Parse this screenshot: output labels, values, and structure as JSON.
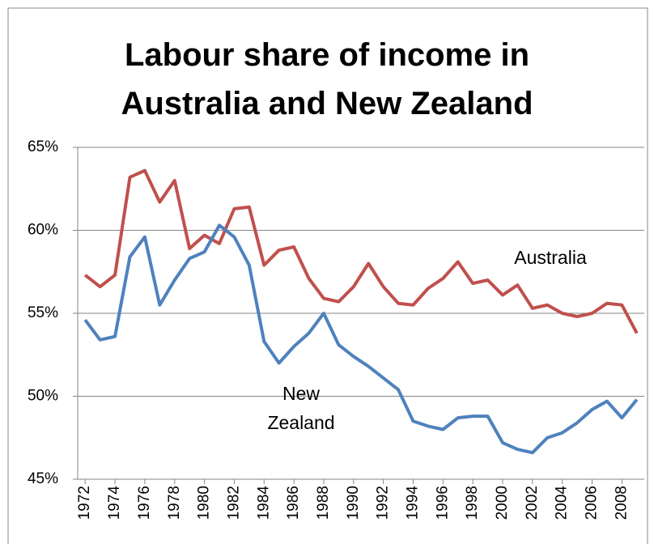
{
  "chart_data": {
    "type": "line",
    "title": "Labour share of income in Australia and New Zealand",
    "x": [
      1972,
      1973,
      1974,
      1975,
      1976,
      1977,
      1978,
      1979,
      1980,
      1981,
      1982,
      1983,
      1984,
      1985,
      1986,
      1987,
      1988,
      1989,
      1990,
      1991,
      1992,
      1993,
      1994,
      1995,
      1996,
      1997,
      1998,
      1999,
      2000,
      2001,
      2002,
      2003,
      2004,
      2005,
      2006,
      2007,
      2008,
      2009
    ],
    "xlim": [
      1971.5,
      2009.5
    ],
    "xticks": [
      1972,
      1974,
      1976,
      1978,
      1980,
      1982,
      1984,
      1986,
      1988,
      1990,
      1992,
      1994,
      1996,
      1998,
      2000,
      2002,
      2004,
      2006,
      2008
    ],
    "ylim": [
      45,
      65
    ],
    "yticks": [
      {
        "value": 45,
        "label": "45%"
      },
      {
        "value": 50,
        "label": "50%"
      },
      {
        "value": 55,
        "label": "55%"
      },
      {
        "value": 60,
        "label": "60%"
      },
      {
        "value": 65,
        "label": "65%"
      }
    ],
    "grid": true,
    "series": [
      {
        "name": "Australia",
        "color": "#c0504d",
        "values": [
          57.3,
          56.6,
          57.3,
          63.2,
          63.6,
          61.7,
          63.0,
          58.9,
          59.7,
          59.2,
          61.3,
          61.4,
          57.9,
          58.8,
          59.0,
          57.1,
          55.9,
          55.7,
          56.6,
          58.0,
          56.6,
          55.6,
          55.5,
          56.5,
          57.1,
          58.1,
          56.8,
          57.0,
          56.1,
          56.7,
          55.3,
          55.5,
          55.0,
          54.8,
          55.0,
          55.6,
          55.5,
          53.8
        ]
      },
      {
        "name": "New Zealand",
        "color": "#4f81bd",
        "values": [
          54.6,
          53.4,
          53.6,
          58.4,
          59.6,
          55.5,
          57.0,
          58.3,
          58.7,
          60.3,
          59.6,
          57.9,
          53.3,
          52.0,
          53.0,
          53.8,
          55.0,
          53.1,
          52.4,
          51.8,
          51.1,
          50.4,
          48.5,
          48.2,
          48.0,
          48.7,
          48.8,
          48.8,
          47.2,
          46.8,
          46.6,
          47.5,
          47.8,
          48.4,
          49.2,
          49.7,
          48.7,
          49.8
        ]
      }
    ]
  }
}
